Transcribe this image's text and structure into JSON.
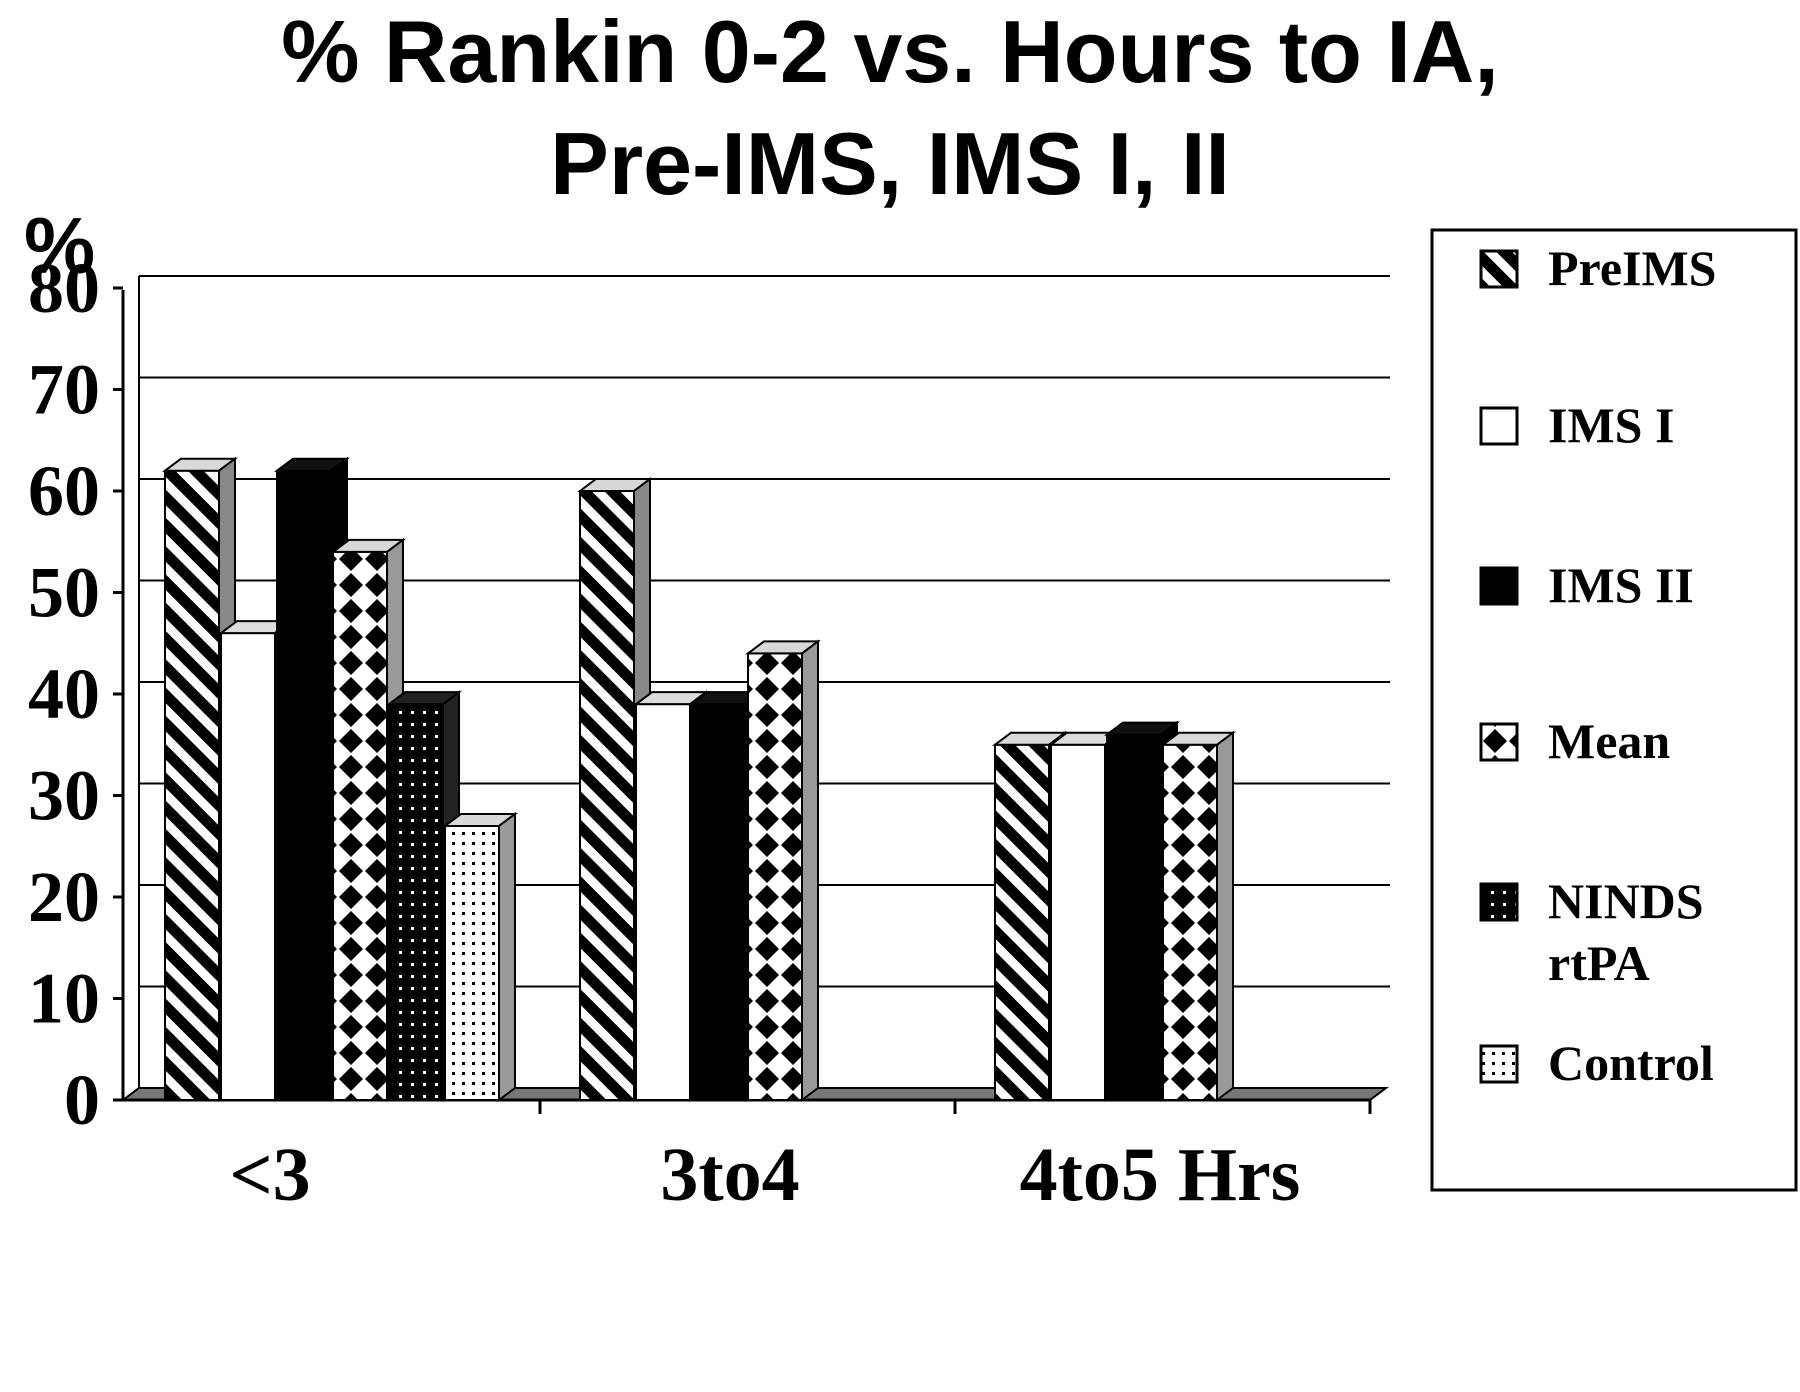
{
  "chart_data": {
    "type": "bar",
    "title": "% Rankin 0-2 vs. Hours to IA,",
    "subtitle": "Pre-IMS, IMS I, II",
    "ylabel": "%",
    "xlabel": "",
    "ylim": [
      0,
      80
    ],
    "yticks": [
      "0",
      "10",
      "20",
      "30",
      "40",
      "50",
      "60",
      "70",
      "80"
    ],
    "categories": [
      "<3",
      "3to4",
      "4to5 Hrs"
    ],
    "series": [
      {
        "name": "PreIMS",
        "values": [
          62,
          60,
          35
        ]
      },
      {
        "name": "IMS I",
        "values": [
          46,
          39,
          35
        ]
      },
      {
        "name": "IMS II",
        "values": [
          62,
          39,
          36
        ]
      },
      {
        "name": "Mean",
        "values": [
          54,
          44,
          35
        ]
      },
      {
        "name": "NINDS rtPA",
        "values": [
          39,
          null,
          null
        ]
      },
      {
        "name": "Control",
        "values": [
          27,
          null,
          null
        ]
      }
    ],
    "legend_labels": [
      [
        "PreIMS"
      ],
      [
        "IMS I"
      ],
      [
        "IMS II"
      ],
      [
        "Mean"
      ],
      [
        "NINDS",
        "rtPA"
      ],
      [
        "Control"
      ]
    ],
    "grid": true,
    "legend_position": "right",
    "style": "3d-bars-with-patterns"
  }
}
